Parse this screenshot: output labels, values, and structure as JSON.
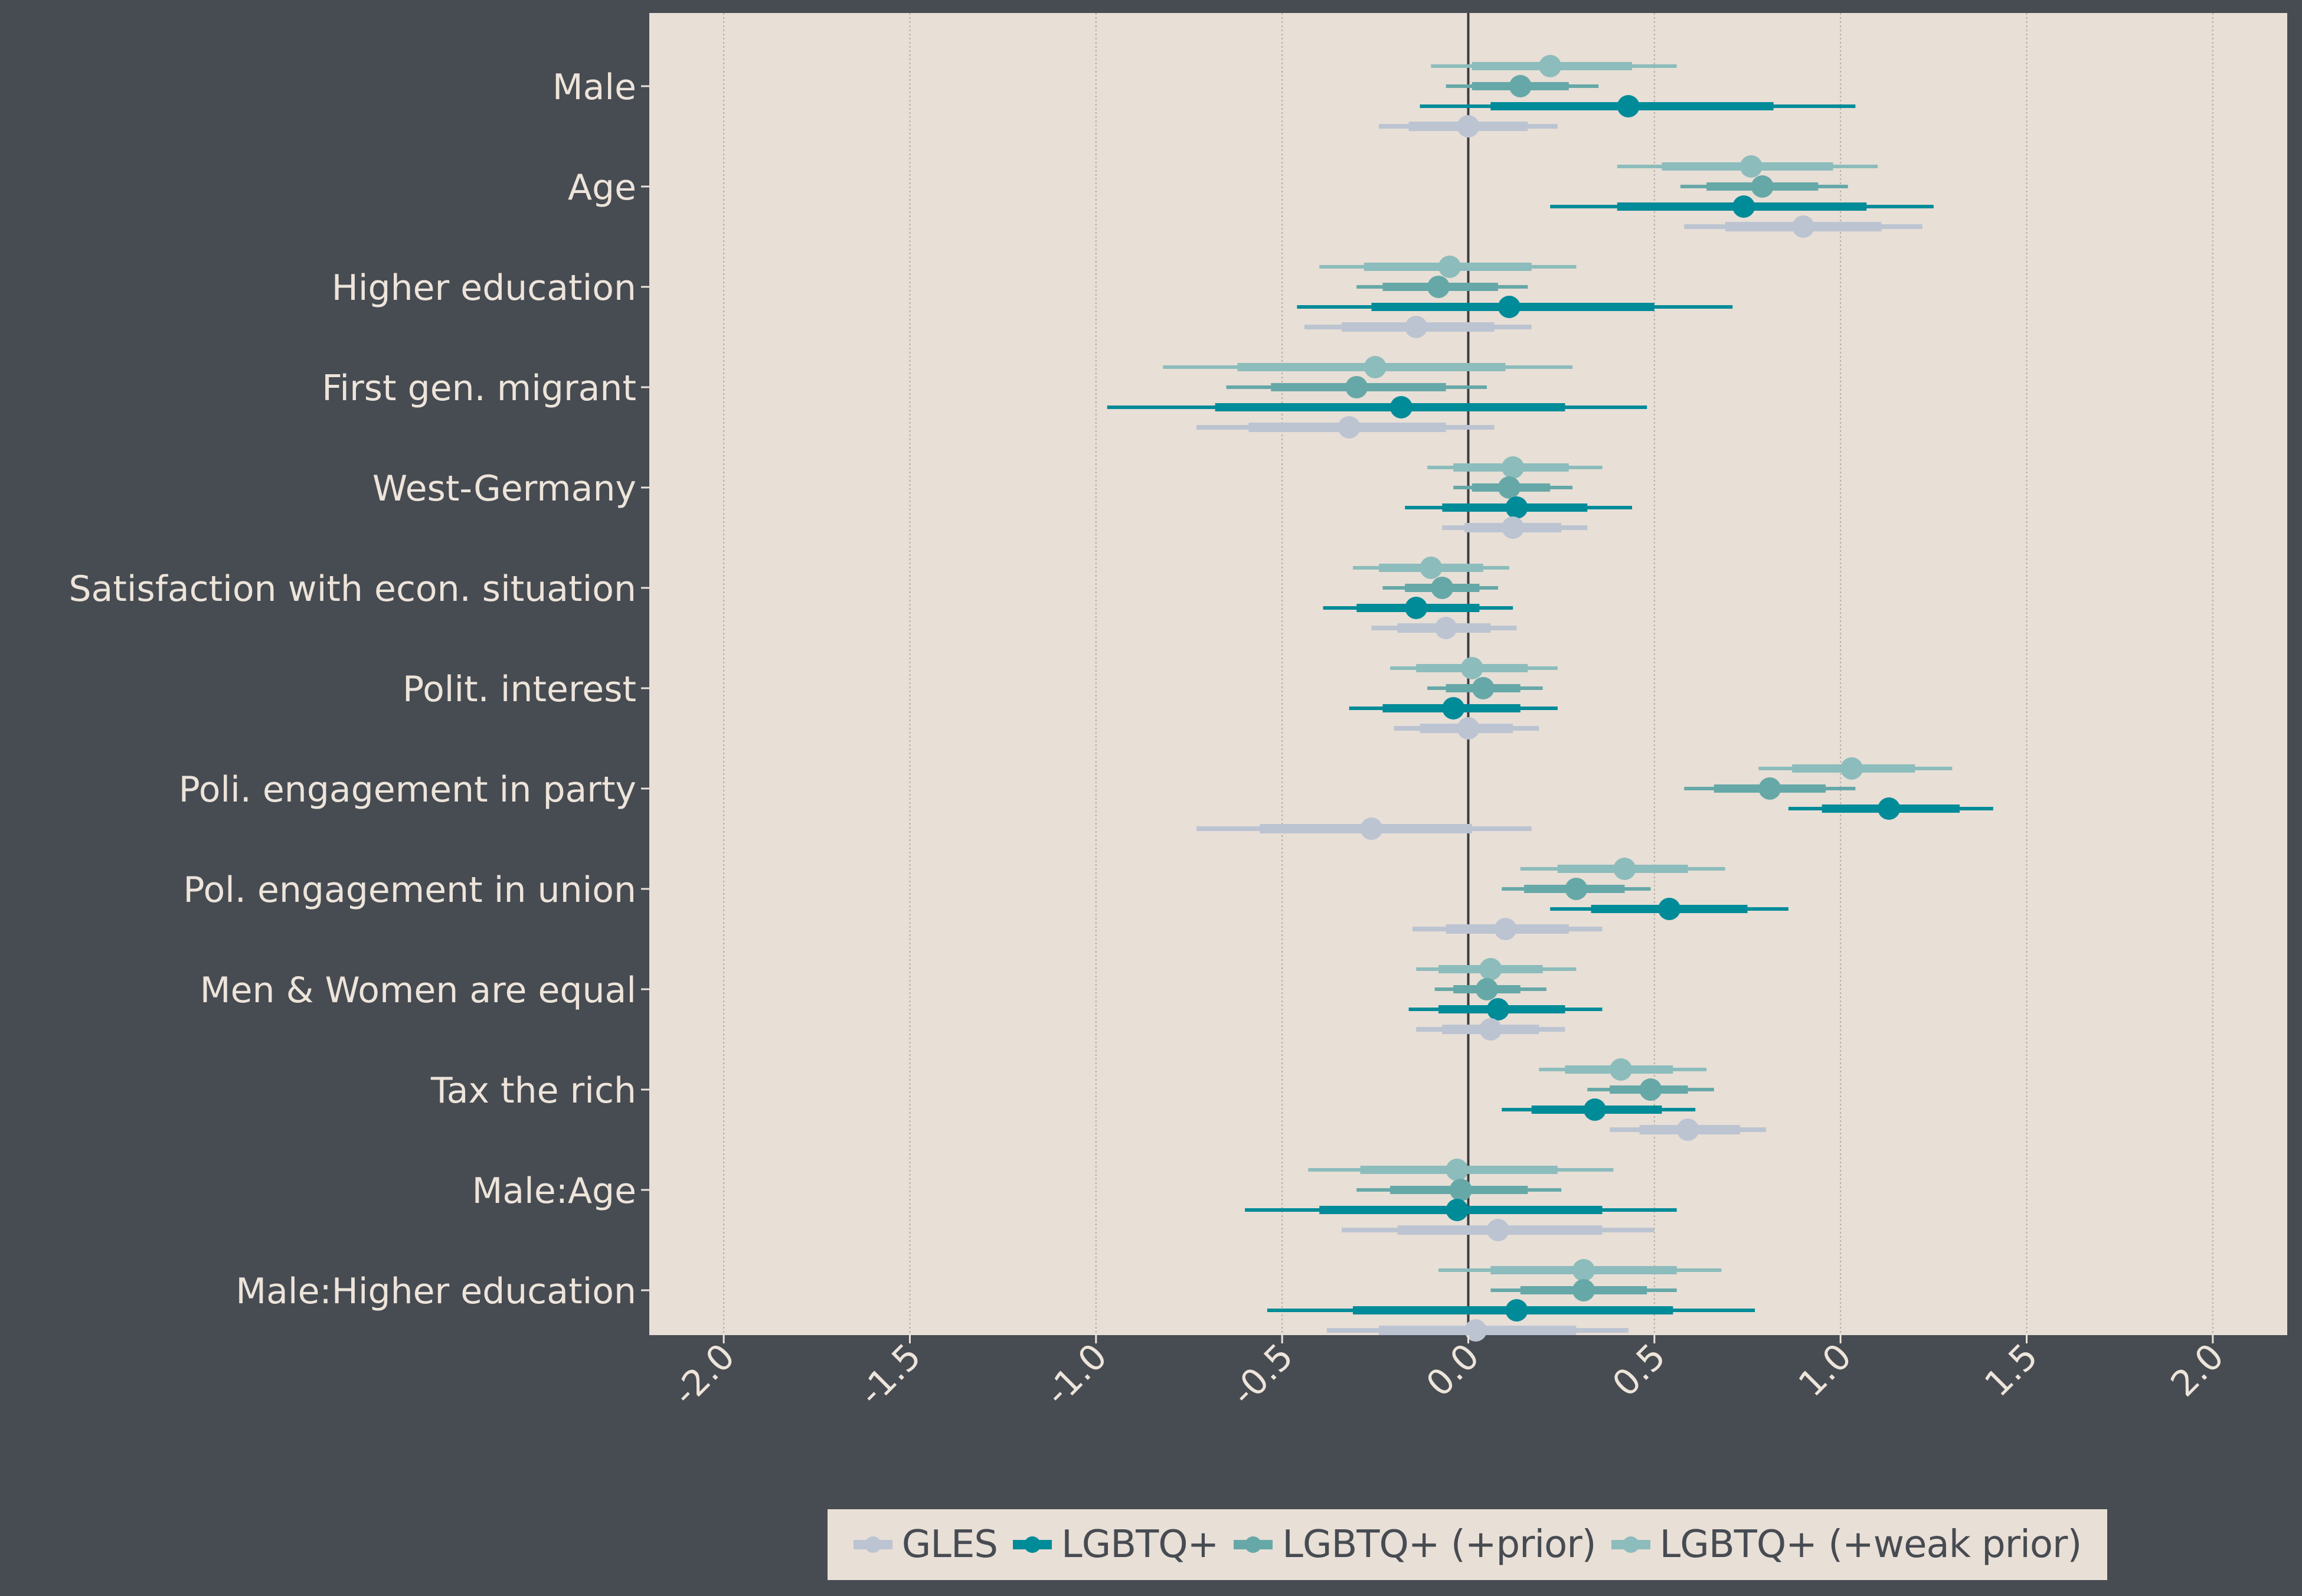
{
  "chart_data": {
    "type": "forest",
    "xlim": [
      -2.2,
      2.2
    ],
    "x_ticks": [
      "-2.0",
      "-1.5",
      "-1.0",
      "-0.5",
      "0.0",
      "0.5",
      "1.0",
      "1.5",
      "2.0"
    ],
    "x_tick_values": [
      -2.0,
      -1.5,
      -1.0,
      -0.5,
      0.0,
      0.5,
      1.0,
      1.5,
      2.0
    ],
    "reference_line": 0.0,
    "grid": "vertical",
    "legend_position": "bottom",
    "categories": [
      "Male",
      "Age",
      "Higher education",
      "First gen. migrant",
      "West-Germany",
      "Satisfaction with econ. situation",
      "Polit. interest",
      "Poli. engagement in party",
      "Pol. engagement in union",
      "Men & Women are equal",
      "Tax the rich",
      "Male:Age",
      "Male:Higher education"
    ],
    "series": [
      {
        "name": "LGBTQ+ (+weak prior)",
        "color": "#8cbcbc",
        "estimates": [
          {
            "category": "Male",
            "est": 0.22,
            "inner": [
              0.01,
              0.44
            ],
            "outer": [
              -0.1,
              0.56
            ]
          },
          {
            "category": "Age",
            "est": 0.76,
            "inner": [
              0.52,
              0.98
            ],
            "outer": [
              0.4,
              1.1
            ]
          },
          {
            "category": "Higher education",
            "est": -0.05,
            "inner": [
              -0.28,
              0.17
            ],
            "outer": [
              -0.4,
              0.29
            ]
          },
          {
            "category": "First gen. migrant",
            "est": -0.25,
            "inner": [
              -0.62,
              0.1
            ],
            "outer": [
              -0.82,
              0.28
            ]
          },
          {
            "category": "West-Germany",
            "est": 0.12,
            "inner": [
              -0.04,
              0.27
            ],
            "outer": [
              -0.11,
              0.36
            ]
          },
          {
            "category": "Satisfaction with econ. situation",
            "est": -0.1,
            "inner": [
              -0.24,
              0.04
            ],
            "outer": [
              -0.31,
              0.11
            ]
          },
          {
            "category": "Polit. interest",
            "est": 0.01,
            "inner": [
              -0.14,
              0.16
            ],
            "outer": [
              -0.21,
              0.24
            ]
          },
          {
            "category": "Poli. engagement in party",
            "est": 1.03,
            "inner": [
              0.87,
              1.2
            ],
            "outer": [
              0.78,
              1.3
            ]
          },
          {
            "category": "Pol. engagement in union",
            "est": 0.42,
            "inner": [
              0.24,
              0.59
            ],
            "outer": [
              0.14,
              0.69
            ]
          },
          {
            "category": "Men & Women are equal",
            "est": 0.06,
            "inner": [
              -0.08,
              0.2
            ],
            "outer": [
              -0.14,
              0.29
            ]
          },
          {
            "category": "Tax the rich",
            "est": 0.41,
            "inner": [
              0.26,
              0.55
            ],
            "outer": [
              0.19,
              0.64
            ]
          },
          {
            "category": "Male:Age",
            "est": -0.03,
            "inner": [
              -0.29,
              0.24
            ],
            "outer": [
              -0.43,
              0.39
            ]
          },
          {
            "category": "Male:Higher education",
            "est": 0.31,
            "inner": [
              0.06,
              0.56
            ],
            "outer": [
              -0.08,
              0.68
            ]
          }
        ]
      },
      {
        "name": "LGBTQ+ (+prior)",
        "color": "#66a8a8",
        "estimates": [
          {
            "category": "Male",
            "est": 0.14,
            "inner": [
              0.01,
              0.27
            ],
            "outer": [
              -0.06,
              0.35
            ]
          },
          {
            "category": "Age",
            "est": 0.79,
            "inner": [
              0.64,
              0.94
            ],
            "outer": [
              0.57,
              1.02
            ]
          },
          {
            "category": "Higher education",
            "est": -0.08,
            "inner": [
              -0.23,
              0.08
            ],
            "outer": [
              -0.3,
              0.16
            ]
          },
          {
            "category": "First gen. migrant",
            "est": -0.3,
            "inner": [
              -0.53,
              -0.06
            ],
            "outer": [
              -0.65,
              0.05
            ]
          },
          {
            "category": "West-Germany",
            "est": 0.11,
            "inner": [
              0.01,
              0.22
            ],
            "outer": [
              -0.04,
              0.28
            ]
          },
          {
            "category": "Satisfaction with econ. situation",
            "est": -0.07,
            "inner": [
              -0.17,
              0.03
            ],
            "outer": [
              -0.23,
              0.08
            ]
          },
          {
            "category": "Polit. interest",
            "est": 0.04,
            "inner": [
              -0.06,
              0.14
            ],
            "outer": [
              -0.11,
              0.2
            ]
          },
          {
            "category": "Poli. engagement in party",
            "est": 0.81,
            "inner": [
              0.66,
              0.96
            ],
            "outer": [
              0.58,
              1.04
            ]
          },
          {
            "category": "Pol. engagement in union",
            "est": 0.29,
            "inner": [
              0.15,
              0.42
            ],
            "outer": [
              0.09,
              0.49
            ]
          },
          {
            "category": "Men & Women are equal",
            "est": 0.05,
            "inner": [
              -0.04,
              0.14
            ],
            "outer": [
              -0.09,
              0.21
            ]
          },
          {
            "category": "Tax the rich",
            "est": 0.49,
            "inner": [
              0.38,
              0.59
            ],
            "outer": [
              0.32,
              0.66
            ]
          },
          {
            "category": "Male:Age",
            "est": -0.02,
            "inner": [
              -0.21,
              0.16
            ],
            "outer": [
              -0.3,
              0.25
            ]
          },
          {
            "category": "Male:Higher education",
            "est": 0.31,
            "inner": [
              0.14,
              0.48
            ],
            "outer": [
              0.06,
              0.56
            ]
          }
        ]
      },
      {
        "name": "LGBTQ+",
        "color": "#008b99",
        "estimates": [
          {
            "category": "Male",
            "est": 0.43,
            "inner": [
              0.06,
              0.82
            ],
            "outer": [
              -0.13,
              1.04
            ]
          },
          {
            "category": "Age",
            "est": 0.74,
            "inner": [
              0.4,
              1.07
            ],
            "outer": [
              0.22,
              1.25
            ]
          },
          {
            "category": "Higher education",
            "est": 0.11,
            "inner": [
              -0.26,
              0.5
            ],
            "outer": [
              -0.46,
              0.71
            ]
          },
          {
            "category": "First gen. migrant",
            "est": -0.18,
            "inner": [
              -0.68,
              0.26
            ],
            "outer": [
              -0.97,
              0.48
            ]
          },
          {
            "category": "West-Germany",
            "est": 0.13,
            "inner": [
              -0.07,
              0.32
            ],
            "outer": [
              -0.17,
              0.44
            ]
          },
          {
            "category": "Satisfaction with econ. situation",
            "est": -0.14,
            "inner": [
              -0.3,
              0.03
            ],
            "outer": [
              -0.39,
              0.12
            ]
          },
          {
            "category": "Polit. interest",
            "est": -0.04,
            "inner": [
              -0.23,
              0.14
            ],
            "outer": [
              -0.32,
              0.24
            ]
          },
          {
            "category": "Poli. engagement in party",
            "est": 1.13,
            "inner": [
              0.95,
              1.32
            ],
            "outer": [
              0.86,
              1.41
            ]
          },
          {
            "category": "Pol. engagement in union",
            "est": 0.54,
            "inner": [
              0.33,
              0.75
            ],
            "outer": [
              0.22,
              0.86
            ]
          },
          {
            "category": "Men & Women are equal",
            "est": 0.08,
            "inner": [
              -0.08,
              0.26
            ],
            "outer": [
              -0.16,
              0.36
            ]
          },
          {
            "category": "Tax the rich",
            "est": 0.34,
            "inner": [
              0.17,
              0.52
            ],
            "outer": [
              0.09,
              0.61
            ]
          },
          {
            "category": "Male:Age",
            "est": -0.03,
            "inner": [
              -0.4,
              0.36
            ],
            "outer": [
              -0.6,
              0.56
            ]
          },
          {
            "category": "Male:Higher education",
            "est": 0.13,
            "inner": [
              -0.31,
              0.55
            ],
            "outer": [
              -0.54,
              0.77
            ]
          }
        ]
      },
      {
        "name": "GLES",
        "color": "#bcc4d2",
        "estimates": [
          {
            "category": "Male",
            "est": 0.0,
            "inner": [
              -0.16,
              0.16
            ],
            "outer": [
              -0.24,
              0.24
            ]
          },
          {
            "category": "Age",
            "est": 0.9,
            "inner": [
              0.69,
              1.11
            ],
            "outer": [
              0.58,
              1.22
            ]
          },
          {
            "category": "Higher education",
            "est": -0.14,
            "inner": [
              -0.34,
              0.07
            ],
            "outer": [
              -0.44,
              0.17
            ]
          },
          {
            "category": "First gen. migrant",
            "est": -0.32,
            "inner": [
              -0.59,
              -0.06
            ],
            "outer": [
              -0.73,
              0.07
            ]
          },
          {
            "category": "West-Germany",
            "est": 0.12,
            "inner": [
              -0.01,
              0.25
            ],
            "outer": [
              -0.07,
              0.32
            ]
          },
          {
            "category": "Satisfaction with econ. situation",
            "est": -0.06,
            "inner": [
              -0.19,
              0.06
            ],
            "outer": [
              -0.26,
              0.13
            ]
          },
          {
            "category": "Polit. interest",
            "est": 0.0,
            "inner": [
              -0.13,
              0.12
            ],
            "outer": [
              -0.2,
              0.19
            ]
          },
          {
            "category": "Poli. engagement in party",
            "est": -0.26,
            "inner": [
              -0.56,
              0.01
            ],
            "outer": [
              -0.73,
              0.17
            ]
          },
          {
            "category": "Pol. engagement in union",
            "est": 0.1,
            "inner": [
              -0.06,
              0.27
            ],
            "outer": [
              -0.15,
              0.36
            ]
          },
          {
            "category": "Men & Women are equal",
            "est": 0.06,
            "inner": [
              -0.07,
              0.19
            ],
            "outer": [
              -0.14,
              0.26
            ]
          },
          {
            "category": "Tax the rich",
            "est": 0.59,
            "inner": [
              0.46,
              0.73
            ],
            "outer": [
              0.38,
              0.8
            ]
          },
          {
            "category": "Male:Age",
            "est": 0.08,
            "inner": [
              -0.19,
              0.36
            ],
            "outer": [
              -0.34,
              0.5
            ]
          },
          {
            "category": "Male:Higher education",
            "est": 0.02,
            "inner": [
              -0.24,
              0.29
            ],
            "outer": [
              -0.38,
              0.43
            ]
          }
        ]
      }
    ],
    "legend": [
      "GLES",
      "LGBTQ+",
      "LGBTQ+ (+prior)",
      "LGBTQ+ (+weak prior)"
    ]
  },
  "legend_items": [
    {
      "label": "GLES",
      "color": "#bcc4d2"
    },
    {
      "label": "LGBTQ+",
      "color": "#008b99"
    },
    {
      "label": "LGBTQ+ (+prior)",
      "color": "#66a8a8"
    },
    {
      "label": "LGBTQ+ (+weak prior)",
      "color": "#8cbcbc"
    }
  ],
  "colors": {
    "background": "#474b52",
    "panel": "#e8dfd6",
    "text": "#ede4da",
    "grid": "#b6aea4",
    "zero_line": "#3a3d42"
  }
}
